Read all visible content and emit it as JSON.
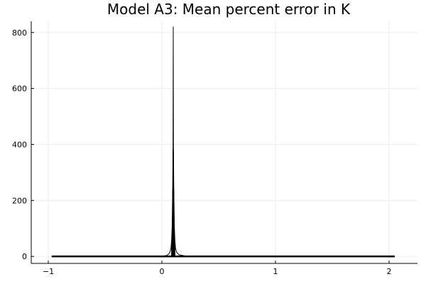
{
  "chart_data": {
    "type": "line",
    "title": "Model A3: Mean percent error in K",
    "xlabel": "",
    "ylabel": "",
    "xlim": [
      -1.15,
      2.25
    ],
    "ylim": [
      -25,
      840
    ],
    "x_ticks": [
      -1,
      0,
      1,
      2
    ],
    "x_tick_labels": [
      "−1",
      "0",
      "1",
      "2"
    ],
    "y_ticks": [
      0,
      200,
      400,
      600,
      800
    ],
    "y_tick_labels": [
      "0",
      "200",
      "400",
      "600",
      "800"
    ],
    "grid": true,
    "legend": "none",
    "series": [
      {
        "color": "#000000",
        "x": [
          -0.97,
          0.0,
          0.04,
          0.06,
          0.07,
          0.08,
          0.085,
          0.09,
          0.095,
          0.098,
          0.1,
          0.102,
          0.105,
          0.11,
          0.115,
          0.12,
          0.13,
          0.15,
          0.2,
          0.3,
          0.6,
          1.0,
          1.5,
          2.05
        ],
        "y": [
          0,
          1,
          3,
          8,
          15,
          30,
          55,
          100,
          240,
          380,
          820,
          380,
          240,
          100,
          55,
          30,
          15,
          6,
          2,
          1,
          0.5,
          0.3,
          0.2,
          0.1
        ]
      }
    ]
  }
}
